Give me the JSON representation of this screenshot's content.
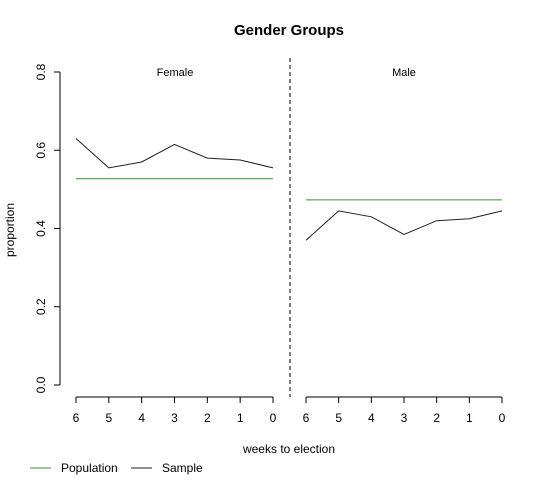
{
  "chart_data": {
    "type": "line",
    "title": "Gender Groups",
    "xlabel": "weeks to election",
    "ylabel": "proportion",
    "ylim": [
      0.0,
      0.8
    ],
    "yticks": [
      "0.0",
      "0.2",
      "0.4",
      "0.6",
      "0.8"
    ],
    "x": [
      6,
      5,
      4,
      3,
      2,
      1,
      0
    ],
    "xticks": [
      "6",
      "5",
      "4",
      "3",
      "2",
      "1",
      "0"
    ],
    "x_reversed": true,
    "grid": false,
    "legend_position": "bottom-left",
    "series_styles": [
      {
        "name": "Population",
        "color": "#3c8f3c"
      },
      {
        "name": "Sample",
        "color": "#222222"
      }
    ],
    "panels": [
      {
        "label": "Female",
        "series": [
          {
            "name": "Population",
            "values": [
              0.527,
              0.527,
              0.527,
              0.527,
              0.527,
              0.527,
              0.527
            ]
          },
          {
            "name": "Sample",
            "values": [
              0.63,
              0.555,
              0.57,
              0.615,
              0.58,
              0.575,
              0.555
            ]
          }
        ]
      },
      {
        "label": "Male",
        "series": [
          {
            "name": "Population",
            "values": [
              0.473,
              0.473,
              0.473,
              0.473,
              0.473,
              0.473,
              0.473
            ]
          },
          {
            "name": "Sample",
            "values": [
              0.37,
              0.445,
              0.43,
              0.385,
              0.42,
              0.425,
              0.445
            ]
          }
        ]
      }
    ]
  }
}
